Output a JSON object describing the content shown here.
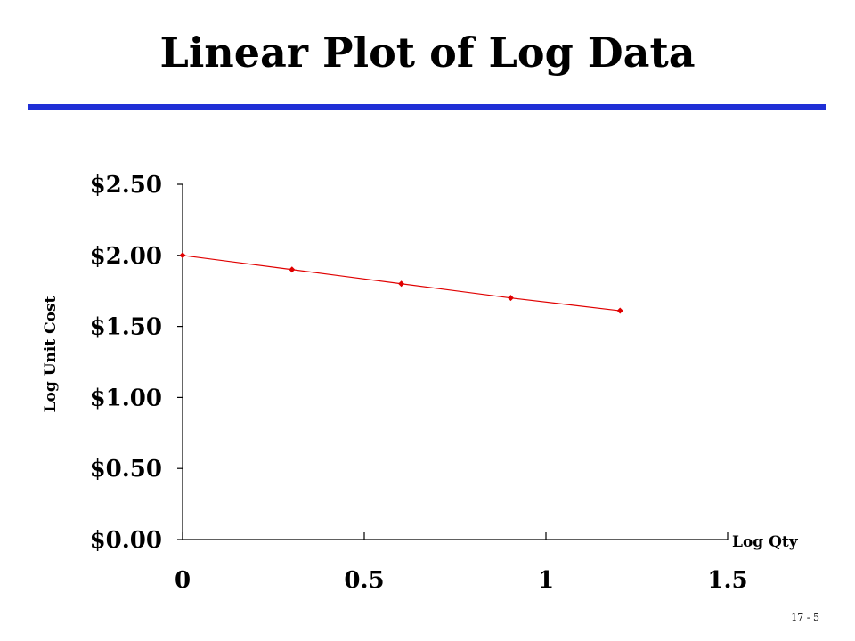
{
  "slide": {
    "title": "Linear Plot of Log Data",
    "page_number": "17 - 5",
    "rule_color": "#1f2fd6"
  },
  "chart_data": {
    "type": "line",
    "xlabel": "Log Qty",
    "ylabel": "Log Unit Cost",
    "xlim": [
      0,
      1.5
    ],
    "ylim": [
      0,
      2.5
    ],
    "x_ticks": [
      0,
      0.5,
      1,
      1.5
    ],
    "x_tick_labels": [
      "0",
      "0.5",
      "1",
      "1.5"
    ],
    "y_ticks": [
      0,
      0.5,
      1,
      1.5,
      2,
      2.5
    ],
    "y_tick_labels": [
      "$0.00",
      "$0.50",
      "$1.00",
      "$1.50",
      "$2.00",
      "$2.50"
    ],
    "grid": false,
    "legend": false,
    "series": [
      {
        "x": [
          0,
          0.301,
          0.602,
          0.903,
          1.204
        ],
        "y": [
          2.0,
          1.9,
          1.8,
          1.7,
          1.61
        ],
        "color": "#e00000",
        "marker": "diamond"
      }
    ]
  }
}
